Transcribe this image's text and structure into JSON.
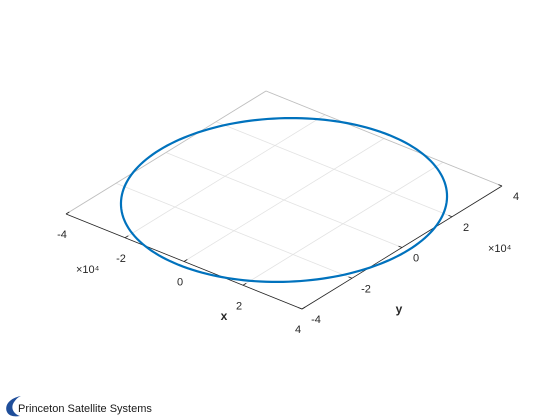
{
  "chart_data": {
    "type": "line",
    "view": "3d",
    "title": "",
    "xlabel": "x",
    "ylabel": "y",
    "zlabel": "",
    "axis_multiplier": "×10⁴",
    "xlim": [
      -40000,
      40000
    ],
    "ylim": [
      -40000,
      40000
    ],
    "xticks": [
      -40000,
      -20000,
      0,
      20000,
      40000
    ],
    "yticks": [
      -40000,
      -20000,
      0,
      20000,
      40000
    ],
    "xtick_labels": [
      "-4",
      "-2",
      "0",
      "2",
      "4"
    ],
    "ytick_labels": [
      "-4",
      "-2",
      "0",
      "2",
      "4"
    ],
    "grid": true,
    "series": [
      {
        "shape": "circle",
        "center_x": 0,
        "center_y": 0,
        "radius": 42164,
        "color": "#0072BD"
      }
    ]
  },
  "branding": {
    "company": "Princeton Satellite Systems",
    "logo_color": "#1f4e9a"
  }
}
